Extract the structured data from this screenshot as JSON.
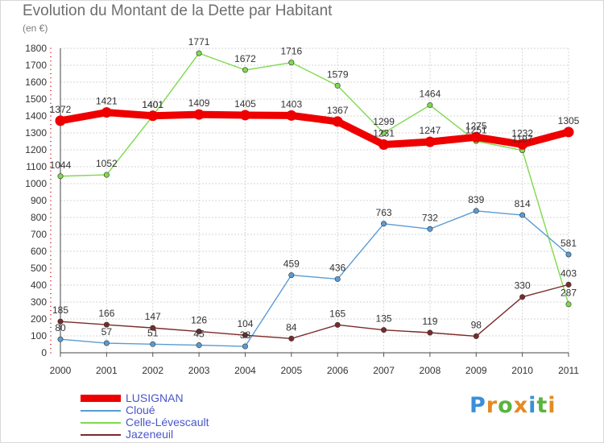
{
  "title": "Evolution du Montant de la Dette par Habitant",
  "subtitle": "(en €)",
  "logo": {
    "text": "Proxiti",
    "letters": [
      "P",
      "r",
      "o",
      "x",
      "i",
      "t",
      "i"
    ],
    "colors": [
      "#3a8fd8",
      "#e58a1f",
      "#5ab43c",
      "#e58a1f",
      "#3a8fd8",
      "#5ab43c",
      "#e58a1f"
    ]
  },
  "chart_data": {
    "type": "line",
    "x": [
      "2000",
      "2001",
      "2002",
      "2003",
      "2004",
      "2005",
      "2006",
      "2007",
      "2008",
      "2009",
      "2010",
      "2011"
    ],
    "ylim": [
      0,
      1800
    ],
    "yticks": [
      0,
      100,
      200,
      300,
      400,
      500,
      600,
      700,
      800,
      900,
      1000,
      1100,
      1200,
      1300,
      1400,
      1500,
      1600,
      1700,
      1800
    ],
    "grid": true,
    "legend_position": "bottom-left",
    "series": [
      {
        "name": "Celle-Lévescault",
        "color": "#7fd94e",
        "values": [
          1044,
          1052,
          1401,
          1771,
          1672,
          1716,
          1579,
          1299,
          1464,
          1251,
          1197,
          287
        ]
      },
      {
        "name": "Cloué",
        "color": "#5a9bd4",
        "values": [
          80,
          57,
          51,
          45,
          38,
          459,
          436,
          763,
          732,
          839,
          814,
          581
        ]
      },
      {
        "name": "Jazeneuil",
        "color": "#7a2a2a",
        "values": [
          185,
          166,
          147,
          126,
          104,
          84,
          165,
          135,
          119,
          98,
          330,
          403
        ]
      },
      {
        "name": "LUSIGNAN",
        "color": "#ee0000",
        "values": [
          1372,
          1421,
          1401,
          1409,
          1405,
          1403,
          1367,
          1231,
          1247,
          1275,
          1232,
          1305
        ]
      }
    ],
    "legend_order": [
      "LUSIGNAN",
      "Cloué",
      "Celle-Lévescault",
      "Jazeneuil"
    ]
  }
}
